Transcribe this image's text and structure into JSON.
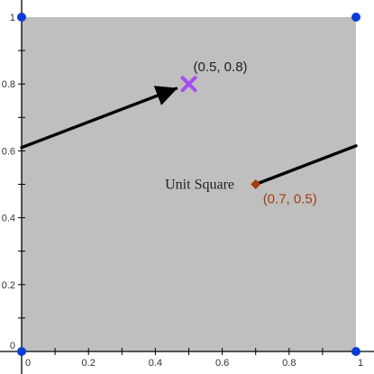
{
  "graph": {
    "x_ticks": [
      "0",
      "0.2",
      "0.4",
      "0.6",
      "0.8",
      "1"
    ],
    "y_ticks": [
      "0",
      "0.2",
      "0.4",
      "0.6",
      "0.8",
      "1"
    ],
    "square_label": "Unit Square",
    "point_a_label": "(0.5, 0.8)",
    "point_b_label": "(0.7, 0.5)",
    "colors": {
      "square_fill": "#bfbfbf",
      "corner_points": "#0a3cd6",
      "point_a": "#a64ff0",
      "point_b": "#a53c0f",
      "arrows": "#000000"
    },
    "icons": {
      "point_a": "x-marker-icon",
      "point_b": "diamond-marker-icon",
      "corner": "circle-marker-icon"
    }
  },
  "chart_data": {
    "type": "scatter",
    "xlim": [
      0,
      1
    ],
    "ylim": [
      0,
      1
    ],
    "x_ticks": [
      0,
      0.2,
      0.4,
      0.6,
      0.8,
      1
    ],
    "y_ticks": [
      0,
      0.2,
      0.4,
      0.6,
      0.8,
      1
    ],
    "region": {
      "label": "Unit Square",
      "vertices": [
        [
          0,
          0
        ],
        [
          1,
          0
        ],
        [
          1,
          1
        ],
        [
          0,
          1
        ]
      ]
    },
    "points": [
      {
        "x": 0.5,
        "y": 0.8,
        "label": "(0.5, 0.8)",
        "marker": "x"
      },
      {
        "x": 0.7,
        "y": 0.5,
        "label": "(0.7, 0.5)",
        "marker": "diamond"
      },
      {
        "x": 0,
        "y": 0,
        "marker": "circle"
      },
      {
        "x": 1,
        "y": 0,
        "marker": "circle"
      },
      {
        "x": 1,
        "y": 1,
        "marker": "circle"
      },
      {
        "x": 0,
        "y": 1,
        "marker": "circle"
      }
    ],
    "vectors": [
      {
        "from": [
          0,
          0.61
        ],
        "to": [
          0.5,
          0.8
        ],
        "arrowhead": true
      },
      {
        "from": [
          0.7,
          0.5
        ],
        "to": [
          1,
          0.615
        ],
        "arrowhead": false
      }
    ]
  }
}
